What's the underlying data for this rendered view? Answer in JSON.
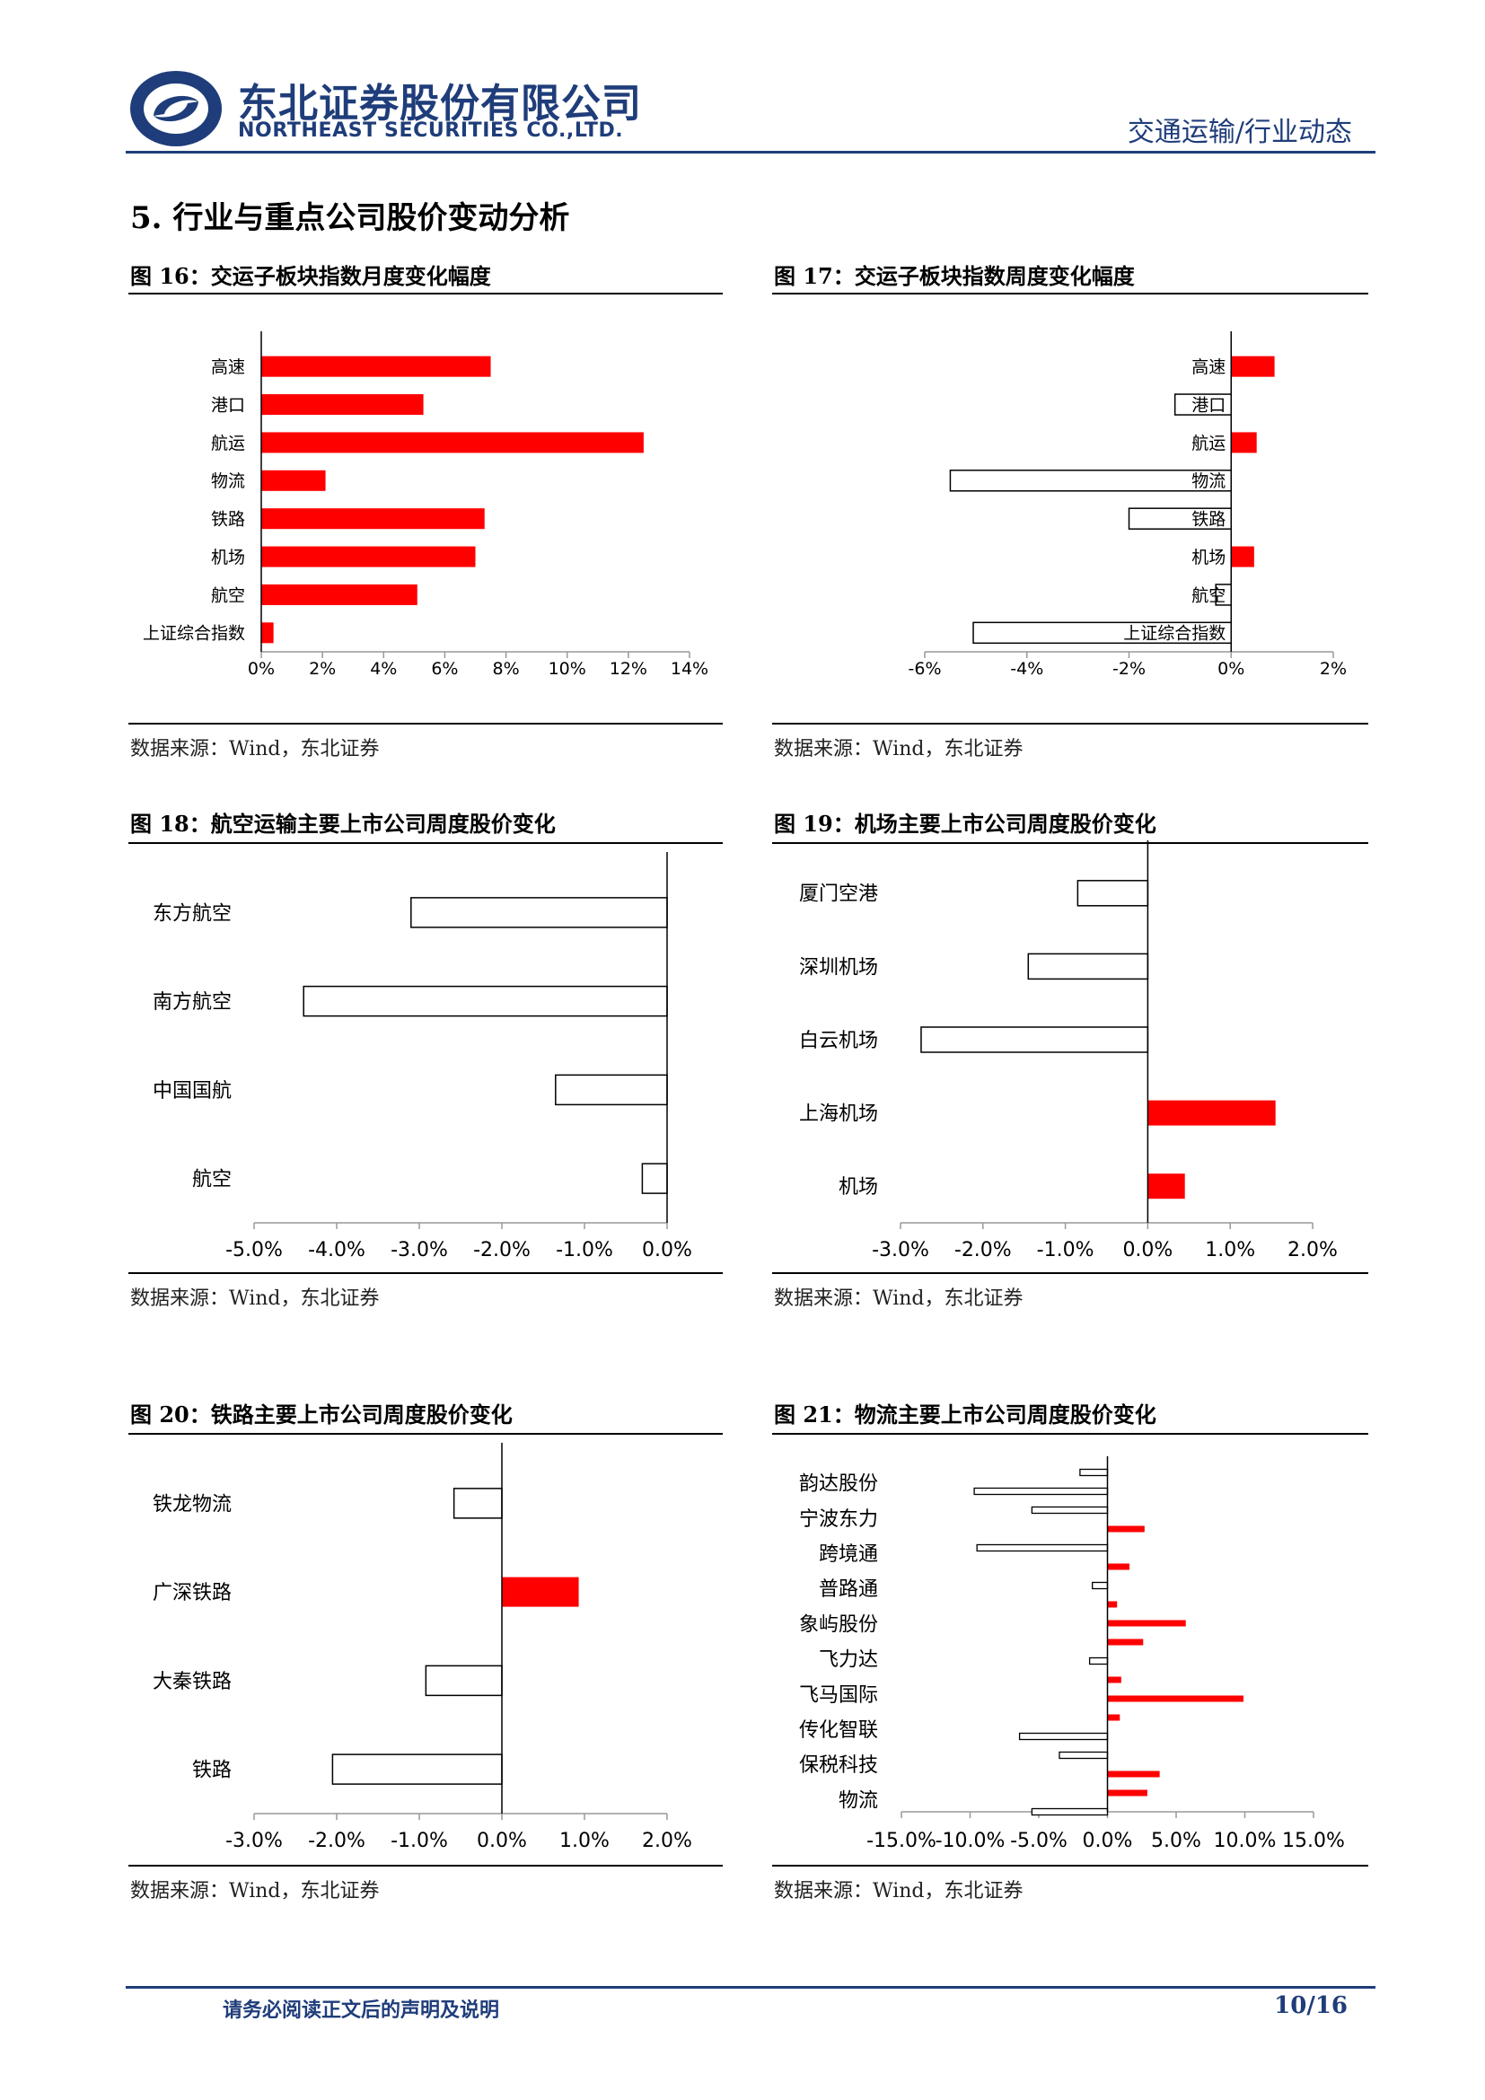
{
  "header": {
    "company_cn": "东北证券股份有限公司",
    "company_en": "NORTHEAST SECURITIES CO.,LTD.",
    "category": "交通运输/行业动态",
    "brand_color": "#1f3d7a"
  },
  "section_title": "5. 行业与重点公司股价变动分析",
  "source_text": "数据来源：Wind，东北证券",
  "footer": {
    "disclaimer": "请务必阅读正文后的声明及说明",
    "page": "10/16"
  },
  "colors": {
    "positive": "#ff0000",
    "negative_fill": "#ffffff",
    "outline": "#000000"
  },
  "charts": {
    "fig16": {
      "title": "图 16：交运子板块指数月度变化幅度",
      "chart_data": {
        "type": "bar",
        "orientation": "horizontal",
        "categories": [
          "高速",
          "港口",
          "航运",
          "物流",
          "铁路",
          "机场",
          "航空",
          "上证综合指数"
        ],
        "values": [
          7.5,
          5.3,
          12.5,
          2.1,
          7.3,
          7.0,
          5.1,
          0.4
        ],
        "xlim": [
          0,
          14
        ],
        "ticks": [
          0,
          2,
          4,
          6,
          8,
          10,
          12,
          14
        ],
        "tick_labels": [
          "0%",
          "2%",
          "4%",
          "6%",
          "8%",
          "10%",
          "12%",
          "14%"
        ]
      }
    },
    "fig17": {
      "title": "图 17：交运子板块指数周度变化幅度",
      "chart_data": {
        "type": "bar",
        "orientation": "horizontal",
        "categories": [
          "高速",
          "港口",
          "航运",
          "物流",
          "铁路",
          "机场",
          "航空",
          "上证综合指数"
        ],
        "values": [
          0.85,
          -1.1,
          0.5,
          -5.5,
          -2.0,
          0.45,
          -0.3,
          -5.05
        ],
        "xlim": [
          -6,
          2
        ],
        "ticks": [
          -6,
          -4,
          -2,
          0,
          2
        ],
        "tick_labels": [
          "-6%",
          "-4%",
          "-2%",
          "0%",
          "2%"
        ]
      }
    },
    "fig18": {
      "title": "图 18：航空运输主要上市公司周度股价变化",
      "chart_data": {
        "type": "bar",
        "orientation": "horizontal",
        "categories": [
          "东方航空",
          "南方航空",
          "中国国航",
          "航空"
        ],
        "values": [
          -3.1,
          -4.4,
          -1.35,
          -0.3
        ],
        "xlim": [
          -5,
          0
        ],
        "ticks": [
          -5,
          -4,
          -3,
          -2,
          -1,
          0
        ],
        "tick_labels": [
          "-5.0%",
          "-4.0%",
          "-3.0%",
          "-2.0%",
          "-1.0%",
          "0.0%"
        ]
      }
    },
    "fig19": {
      "title": "图 19：机场主要上市公司周度股价变化",
      "chart_data": {
        "type": "bar",
        "orientation": "horizontal",
        "categories": [
          "厦门空港",
          "深圳机场",
          "白云机场",
          "上海机场",
          "机场"
        ],
        "values": [
          -0.85,
          -1.45,
          -2.75,
          1.55,
          0.45
        ],
        "xlim": [
          -3,
          2
        ],
        "ticks": [
          -3,
          -2,
          -1,
          0,
          1,
          2
        ],
        "tick_labels": [
          "-3.0%",
          "-2.0%",
          "-1.0%",
          "0.0%",
          "1.0%",
          "2.0%"
        ]
      }
    },
    "fig20": {
      "title": "图 20：铁路主要上市公司周度股价变化",
      "chart_data": {
        "type": "bar",
        "orientation": "horizontal",
        "categories": [
          "铁龙物流",
          "广深铁路",
          "大秦铁路",
          "铁路"
        ],
        "values": [
          -0.58,
          0.93,
          -0.92,
          -2.05
        ],
        "xlim": [
          -3,
          2
        ],
        "ticks": [
          -3,
          -2,
          -1,
          0,
          1,
          2
        ],
        "tick_labels": [
          "-3.0%",
          "-2.0%",
          "-1.0%",
          "0.0%",
          "1.0%",
          "2.0%"
        ]
      }
    },
    "fig21": {
      "title": "图 21：物流主要上市公司周度股价变化",
      "chart_data": {
        "type": "bar",
        "orientation": "horizontal",
        "labels": [
          "韵达股份",
          "宁波东力",
          "跨境通",
          "普路通",
          "象屿股份",
          "飞力达",
          "飞马国际",
          "传化智联",
          "保税科技",
          "物流"
        ],
        "bar_values": [
          -2.0,
          -9.7,
          -5.5,
          2.7,
          -9.5,
          1.6,
          -1.1,
          0.7,
          5.7,
          2.6,
          -1.3,
          1.0,
          9.9,
          0.9,
          -6.4,
          -3.5,
          3.8,
          2.9,
          -5.5
        ],
        "xlim": [
          -15,
          15
        ],
        "ticks": [
          -15,
          -10,
          -5,
          0,
          5,
          10,
          15
        ],
        "tick_labels": [
          "-15.0%",
          "-10.0%",
          "-5.0%",
          "0.0%",
          "5.0%",
          "10.0%",
          "15.0%"
        ]
      }
    }
  }
}
